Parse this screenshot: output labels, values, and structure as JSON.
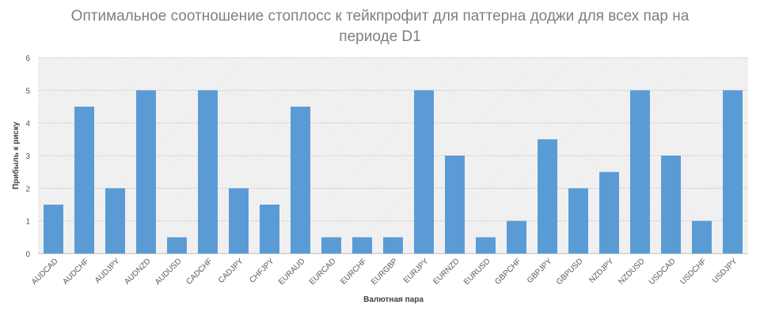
{
  "chart_data": {
    "type": "bar",
    "title": "Оптимальное соотношение стоплосс к тейкпрофит для паттерна доджи для всех пар на периоде D1",
    "xlabel": "Валютная пара",
    "ylabel": "Прибыль к риску",
    "ylim": [
      0,
      6
    ],
    "yticks": [
      0,
      1,
      2,
      3,
      4,
      5,
      6
    ],
    "grid": true,
    "legend": "none",
    "bar_color": "#5b9bd5",
    "categories": [
      "AUDCAD",
      "AUDCHF",
      "AUDJPY",
      "AUDNZD",
      "AUDUSD",
      "CADCHF",
      "CADJPY",
      "CHFJPY",
      "EURAUD",
      "EURCAD",
      "EURCHF",
      "EURGBP",
      "EURJPY",
      "EURNZD",
      "EURUSD",
      "GBPCHF",
      "GBPJPY",
      "GBPUSD",
      "NZDJPY",
      "NZDUSD",
      "USDCAD",
      "USDCHF",
      "USDJPY"
    ],
    "values": [
      1.5,
      4.5,
      2,
      5,
      0.5,
      5,
      2,
      1.5,
      4.5,
      0.5,
      0.5,
      0.5,
      5,
      3,
      0.5,
      1,
      3.5,
      2,
      2.5,
      5,
      3,
      1,
      5
    ]
  }
}
